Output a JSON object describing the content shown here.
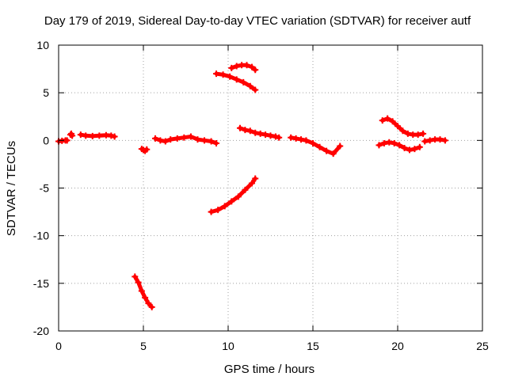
{
  "chart_data": {
    "type": "scatter",
    "title": "Day 179 of 2019, Sidereal Day-to-day VTEC variation (SDTVAR) for receiver autf",
    "xlabel": "GPS time / hours",
    "ylabel": "SDTVAR / TECUs",
    "xlim": [
      0,
      25
    ],
    "ylim": [
      -20,
      10
    ],
    "xticks": [
      0,
      5,
      10,
      15,
      20,
      25
    ],
    "yticks": [
      -20,
      -15,
      -10,
      -5,
      0,
      5,
      10
    ],
    "xtick_labels": [
      "0",
      "5",
      "10",
      "15",
      "20",
      "25"
    ],
    "ytick_labels": [
      "-20",
      "-15",
      "-10",
      "-5",
      "0",
      "5",
      "10"
    ],
    "grid": true,
    "grid_style": "dotted",
    "marker": "plus",
    "point_color": "#ff0000",
    "series": [
      {
        "values": [
          [
            0.0,
            -0.1
          ],
          [
            0.2,
            -0.05
          ],
          [
            0.4,
            0.0
          ],
          [
            0.5,
            0.0
          ]
        ]
      },
      {
        "values": [
          [
            0.7,
            0.6
          ],
          [
            0.75,
            0.7
          ],
          [
            0.8,
            0.5
          ]
        ]
      },
      {
        "values": [
          [
            1.3,
            0.6
          ],
          [
            1.6,
            0.5
          ],
          [
            2.0,
            0.45
          ],
          [
            2.4,
            0.5
          ],
          [
            2.8,
            0.55
          ],
          [
            3.1,
            0.5
          ],
          [
            3.3,
            0.4
          ]
        ]
      },
      {
        "values": [
          [
            4.9,
            -0.9
          ],
          [
            5.0,
            -1.0
          ],
          [
            5.1,
            -1.1
          ],
          [
            5.2,
            -0.95
          ]
        ]
      },
      {
        "values": [
          [
            4.5,
            -14.3
          ],
          [
            4.7,
            -14.9
          ],
          [
            4.9,
            -15.8
          ],
          [
            5.1,
            -16.5
          ],
          [
            5.3,
            -17.1
          ],
          [
            5.5,
            -17.5
          ]
        ]
      },
      {
        "values": [
          [
            5.7,
            0.2
          ],
          [
            6.0,
            0.0
          ],
          [
            6.3,
            -0.1
          ],
          [
            6.6,
            0.1
          ],
          [
            7.0,
            0.2
          ],
          [
            7.4,
            0.3
          ],
          [
            7.8,
            0.4
          ],
          [
            8.2,
            0.1
          ],
          [
            8.6,
            0.0
          ],
          [
            9.0,
            -0.1
          ],
          [
            9.3,
            -0.3
          ]
        ]
      },
      {
        "values": [
          [
            9.0,
            -7.5
          ],
          [
            9.4,
            -7.3
          ],
          [
            9.8,
            -6.9
          ],
          [
            10.2,
            -6.4
          ],
          [
            10.6,
            -5.9
          ],
          [
            11.0,
            -5.2
          ],
          [
            11.4,
            -4.5
          ],
          [
            11.6,
            -4.0
          ]
        ]
      },
      {
        "values": [
          [
            9.3,
            7.0
          ],
          [
            9.7,
            6.9
          ],
          [
            10.1,
            6.7
          ],
          [
            10.5,
            6.4
          ],
          [
            10.9,
            6.1
          ],
          [
            11.3,
            5.7
          ],
          [
            11.6,
            5.3
          ]
        ]
      },
      {
        "values": [
          [
            10.2,
            7.6
          ],
          [
            10.5,
            7.8
          ],
          [
            10.8,
            7.9
          ],
          [
            11.1,
            7.9
          ],
          [
            11.4,
            7.7
          ],
          [
            11.6,
            7.4
          ]
        ]
      },
      {
        "values": [
          [
            10.7,
            1.3
          ],
          [
            11.0,
            1.1
          ],
          [
            11.3,
            1.0
          ],
          [
            11.6,
            0.8
          ],
          [
            11.9,
            0.7
          ],
          [
            12.2,
            0.6
          ],
          [
            12.5,
            0.5
          ],
          [
            12.8,
            0.4
          ],
          [
            13.0,
            0.3
          ]
        ]
      },
      {
        "values": [
          [
            13.7,
            0.3
          ],
          [
            14.0,
            0.2
          ],
          [
            14.3,
            0.1
          ],
          [
            14.6,
            0.0
          ],
          [
            15.0,
            -0.3
          ],
          [
            15.4,
            -0.7
          ],
          [
            15.8,
            -1.1
          ],
          [
            16.2,
            -1.4
          ],
          [
            16.6,
            -0.6
          ]
        ]
      },
      {
        "values": [
          [
            18.9,
            -0.5
          ],
          [
            19.2,
            -0.3
          ],
          [
            19.5,
            -0.2
          ],
          [
            19.8,
            -0.3
          ],
          [
            20.1,
            -0.5
          ],
          [
            20.4,
            -0.8
          ],
          [
            20.7,
            -1.0
          ],
          [
            21.0,
            -0.9
          ],
          [
            21.3,
            -0.7
          ]
        ]
      },
      {
        "values": [
          [
            19.1,
            2.1
          ],
          [
            19.4,
            2.3
          ],
          [
            19.7,
            2.0
          ],
          [
            20.0,
            1.5
          ],
          [
            20.3,
            1.0
          ],
          [
            20.6,
            0.7
          ],
          [
            20.9,
            0.6
          ],
          [
            21.2,
            0.6
          ],
          [
            21.5,
            0.7
          ]
        ]
      },
      {
        "values": [
          [
            21.6,
            -0.1
          ],
          [
            21.9,
            0.0
          ],
          [
            22.2,
            0.1
          ],
          [
            22.5,
            0.1
          ],
          [
            22.8,
            0.0
          ]
        ]
      }
    ]
  }
}
